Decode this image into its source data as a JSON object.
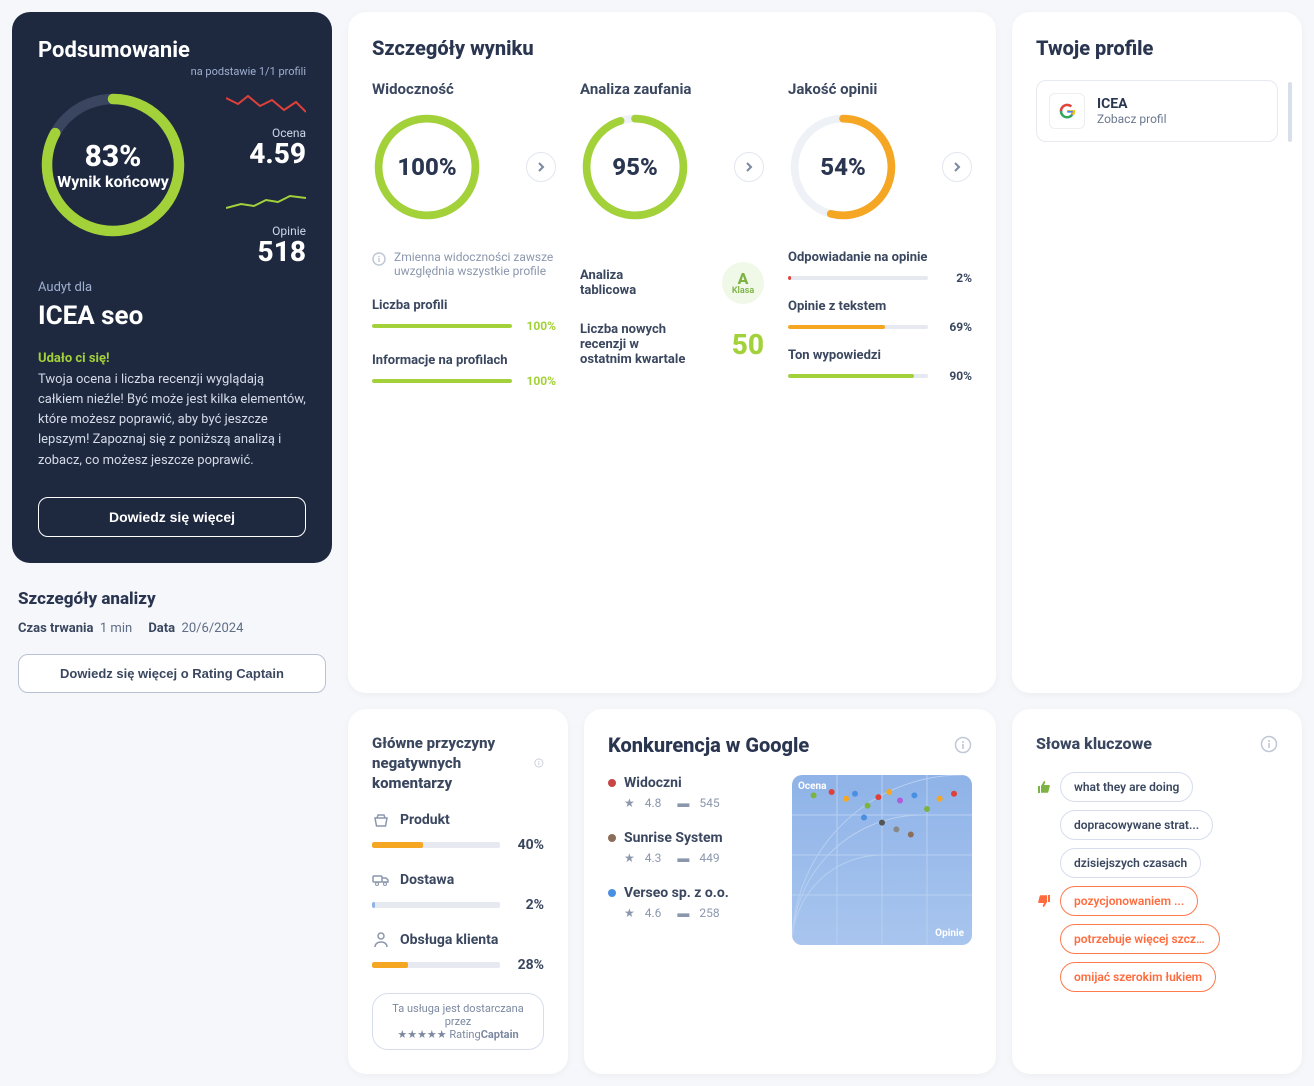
{
  "summary": {
    "title": "Podsumowanie",
    "subtitle": "na podstawie 1/1 profili",
    "gauge": {
      "percent": 83,
      "percent_label": "83%",
      "label": "Wynik końcowy",
      "color": "#a3d139",
      "track": "#3a4560"
    },
    "rating": {
      "label": "Ocena",
      "value": "4.59",
      "spark_color": "#e0403a"
    },
    "reviews": {
      "label": "Opinie",
      "value": "518",
      "spark_color": "#a3d139"
    },
    "audit_for": "Audyt dla",
    "company": "ICEA seo",
    "success": "Udało ci się!",
    "description": "Twoja ocena i liczba recenzji wyglądają całkiem nieźle! Być może jest kilka elementów, które możesz poprawić, aby być jeszcze lepszym! Zapoznaj się z poniższą analizą i zobacz, co możesz jeszcze poprawić.",
    "button": "Dowiedz się więcej"
  },
  "analysis_details": {
    "title": "Szczegóły analizy",
    "duration_label": "Czas trwania",
    "duration_value": "1 min",
    "date_label": "Data",
    "date_value": "20/6/2024",
    "button": "Dowiedz się więcej o Rating Captain"
  },
  "result_details": {
    "title": "Szczegóły wyniku",
    "visibility": {
      "title": "Widoczność",
      "percent": 100,
      "percent_label": "100%",
      "color": "#a3d139",
      "note": "Zmienna widoczności zawsze uwzględnia wszystkie profile",
      "metrics": [
        {
          "label": "Liczba profili",
          "percent": 100,
          "value": "100%",
          "color": "#a3d139"
        },
        {
          "label": "Informacje na profilach",
          "percent": 100,
          "value": "100%",
          "color": "#a3d139"
        }
      ]
    },
    "trust": {
      "title": "Analiza zaufania",
      "percent": 95,
      "percent_label": "95%",
      "color": "#a3d139",
      "panel_label": "Analiza tablicowa",
      "grade": "A",
      "grade_label": "Klasa",
      "new_reviews_label": "Liczba nowych recenzji w ostatnim kwartale",
      "new_reviews_value": "50"
    },
    "quality": {
      "title": "Jakość opinii",
      "percent": 54,
      "percent_label": "54%",
      "color": "#f5a623",
      "metrics": [
        {
          "label": "Odpowiadanie na opinie",
          "percent": 2,
          "value": "2%",
          "color": "#e0403a",
          "value_color": "#3a475f"
        },
        {
          "label": "Opinie z tekstem",
          "percent": 69,
          "value": "69%",
          "color": "#f5a623",
          "value_color": "#3a475f"
        },
        {
          "label": "Ton wypowiedzi",
          "percent": 90,
          "value": "90%",
          "color": "#a3d139",
          "value_color": "#3a475f"
        }
      ]
    }
  },
  "profiles": {
    "title": "Twoje profile",
    "items": [
      {
        "name": "ICEA",
        "link": "Zobacz profil"
      }
    ]
  },
  "neg_reasons": {
    "title": "Główne przyczyny negatywnych komentarzy",
    "categories": [
      {
        "icon": "basket",
        "label": "Produkt",
        "percent": 40,
        "value": "40%",
        "color": "#f5a623"
      },
      {
        "icon": "truck",
        "label": "Dostawa",
        "percent": 2,
        "value": "2%",
        "color": "#8fb3e8"
      },
      {
        "icon": "person",
        "label": "Obsługa klienta",
        "percent": 28,
        "value": "28%",
        "color": "#f5a623"
      }
    ],
    "provided_line1": "Ta usługa jest dostarczana przez",
    "provided_line2a": "Rating",
    "provided_line2b": "Captain"
  },
  "competition": {
    "title": "Konkurencja w Google",
    "items": [
      {
        "color": "#c74545",
        "name": "Widoczni",
        "rating": "4.8",
        "reviews": "545"
      },
      {
        "color": "#8b6d5a",
        "name": "Sunrise System",
        "rating": "4.3",
        "reviews": "449"
      },
      {
        "color": "#4a90e2",
        "name": "Verseo sp. z o.o.",
        "rating": "4.6",
        "reviews": "258"
      }
    ],
    "axis_x": "Opinie",
    "axis_y": "Ocena",
    "scatter_points": [
      {
        "x": 12,
        "y": 12,
        "c": "#7cb342"
      },
      {
        "x": 22,
        "y": 10,
        "c": "#e0403a"
      },
      {
        "x": 30,
        "y": 14,
        "c": "#f5a623"
      },
      {
        "x": 35,
        "y": 11,
        "c": "#4a90e2"
      },
      {
        "x": 42,
        "y": 18,
        "c": "#7cb342"
      },
      {
        "x": 48,
        "y": 13,
        "c": "#e0403a"
      },
      {
        "x": 54,
        "y": 10,
        "c": "#f5a623"
      },
      {
        "x": 60,
        "y": 15,
        "c": "#b05bd8"
      },
      {
        "x": 68,
        "y": 12,
        "c": "#4a90e2"
      },
      {
        "x": 75,
        "y": 20,
        "c": "#7cb342"
      },
      {
        "x": 82,
        "y": 14,
        "c": "#f5a623"
      },
      {
        "x": 90,
        "y": 11,
        "c": "#e0403a"
      },
      {
        "x": 50,
        "y": 28,
        "c": "#555"
      },
      {
        "x": 58,
        "y": 32,
        "c": "#888"
      },
      {
        "x": 66,
        "y": 35,
        "c": "#8b6d5a"
      },
      {
        "x": 40,
        "y": 25,
        "c": "#4a90e2"
      }
    ]
  },
  "keywords": {
    "title": "Słowa kluczowe",
    "positive_icon_color": "#7cb342",
    "negative_icon_color": "#ff6b3d",
    "items": [
      {
        "sentiment": "pos",
        "show_icon": true,
        "text": "what they are doing"
      },
      {
        "sentiment": "pos",
        "show_icon": false,
        "text": "dopracowywane strat..."
      },
      {
        "sentiment": "pos",
        "show_icon": false,
        "text": "dzisiejszych czasach"
      },
      {
        "sentiment": "neg",
        "show_icon": true,
        "text": "pozycjonowaniem ..."
      },
      {
        "sentiment": "neg",
        "show_icon": false,
        "text": "potrzebuje więcej szcz..."
      },
      {
        "sentiment": "neg",
        "show_icon": false,
        "text": "omijać szerokim łukiem"
      }
    ]
  },
  "colors": {
    "bg": "#f5f7fb",
    "card": "#ffffff",
    "dark": "#1e2940"
  }
}
